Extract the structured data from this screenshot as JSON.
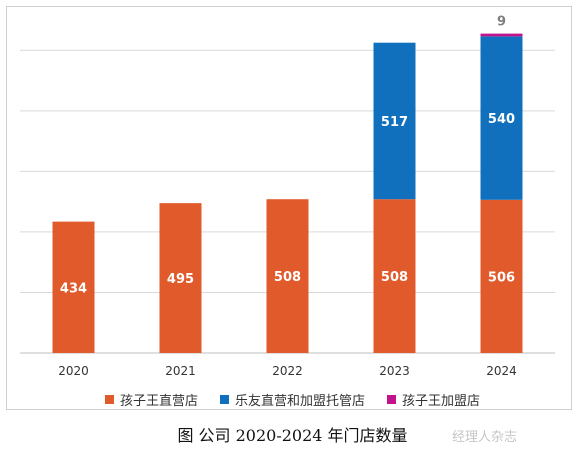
{
  "chart_data": {
    "type": "bar",
    "stacked": true,
    "categories": [
      "2020",
      "2021",
      "2022",
      "2023",
      "2024"
    ],
    "series": [
      {
        "name": "孩子王直营店",
        "values": [
          434,
          495,
          508,
          508,
          506
        ],
        "color": "#E05A2B"
      },
      {
        "name": "乐友直营和加盟托管店",
        "values": [
          0,
          0,
          0,
          517,
          540
        ],
        "color": "#1170BD"
      },
      {
        "name": "孩子王加盟店",
        "values": [
          0,
          0,
          0,
          0,
          9
        ],
        "color": "#C0138C"
      }
    ],
    "data_labels": {
      "series_0": [
        "434",
        "495",
        "508",
        "508",
        "506"
      ],
      "series_1": [
        "",
        "",
        "",
        "517",
        "540"
      ],
      "series_2": [
        "",
        "",
        "",
        "",
        "9"
      ]
    },
    "title": "",
    "xlabel": "",
    "ylabel": "",
    "ylim": [
      0,
      1100
    ],
    "grid": true,
    "legend_position": "bottom"
  },
  "caption": "图 公司 2020-2024 年门店数量",
  "watermark": "经理人杂志"
}
